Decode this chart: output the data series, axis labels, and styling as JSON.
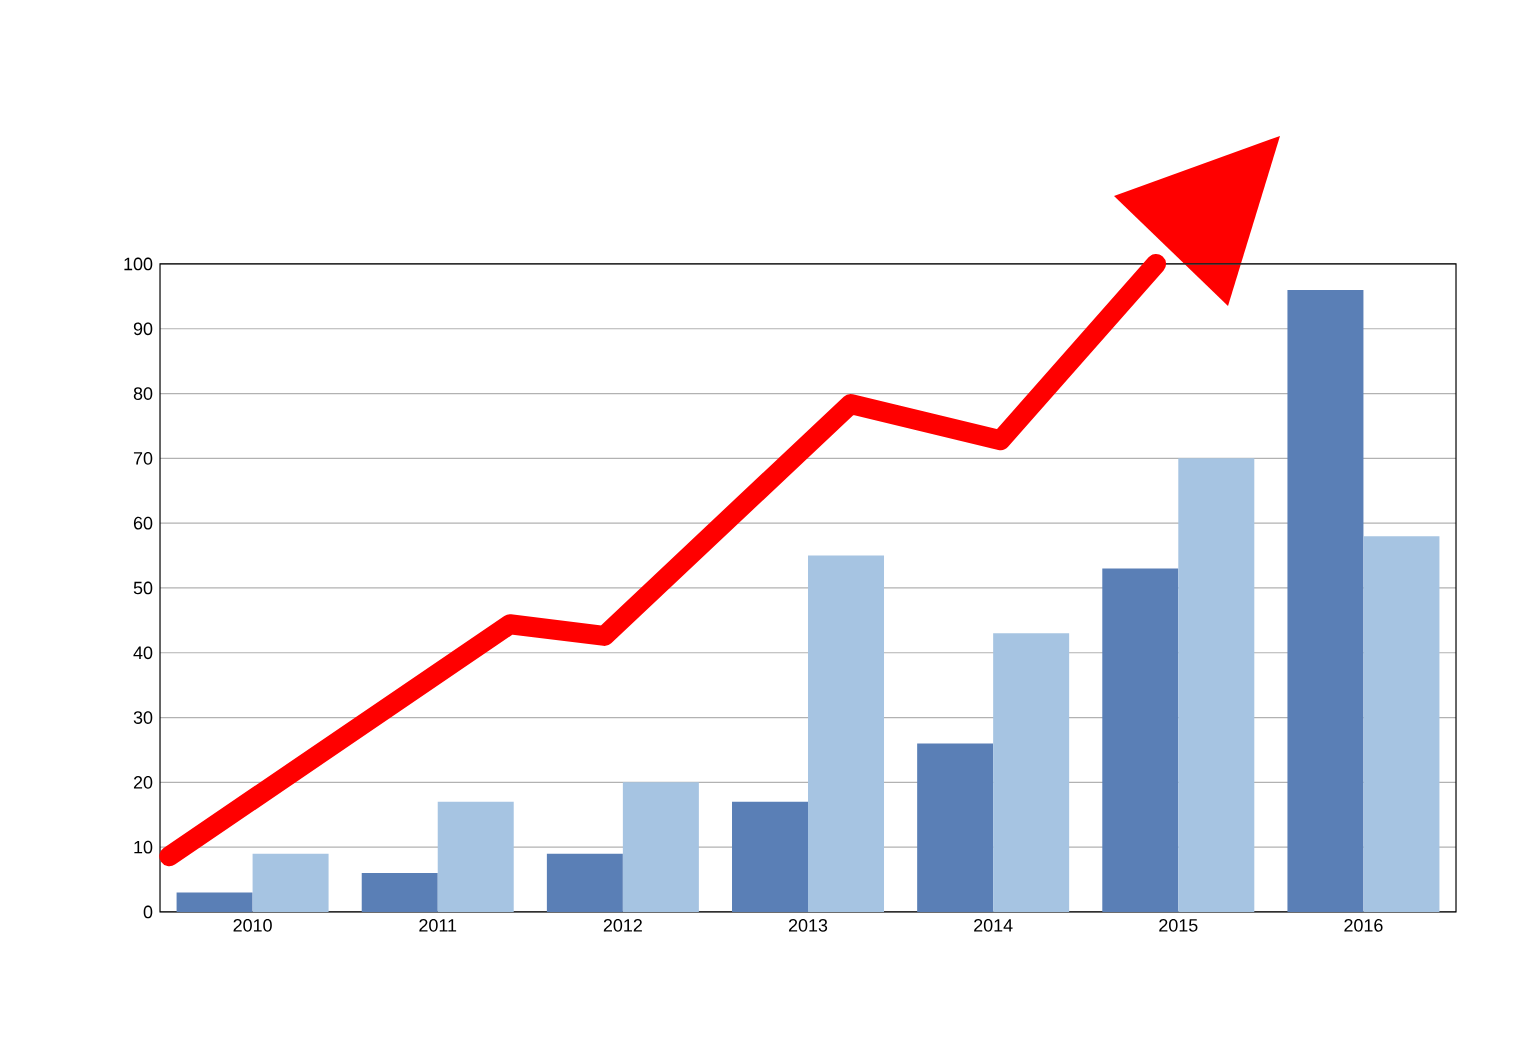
{
  "chart_data": {
    "type": "bar",
    "x": [
      2010,
      2011,
      2012,
      2013,
      2014,
      2015,
      2016
    ],
    "series": [
      {
        "color": "#5a7fb6",
        "values": [
          3,
          6,
          9,
          17,
          26,
          53,
          96
        ]
      },
      {
        "color": "#a6c4e2",
        "values": [
          9,
          17,
          20,
          55,
          43,
          70,
          58
        ]
      },
      {
        "type": "line",
        "color": "#ff0000",
        "x": [
          2009.55,
          2011.39,
          2011.9,
          2013.23,
          2014.04,
          2014.88
        ],
        "values": [
          8.6,
          44.4,
          42.6,
          78.4,
          72.8,
          100
        ]
      }
    ],
    "xlim": [
      2009.5,
      2016.5
    ],
    "xticks": [
      2010,
      2011,
      2012,
      2013,
      2014,
      2015,
      2016
    ],
    "ylim": [
      0,
      100
    ],
    "yticks": [
      0,
      10,
      20,
      30,
      40,
      50,
      60,
      70,
      80,
      90,
      100
    ],
    "grid": "y"
  }
}
